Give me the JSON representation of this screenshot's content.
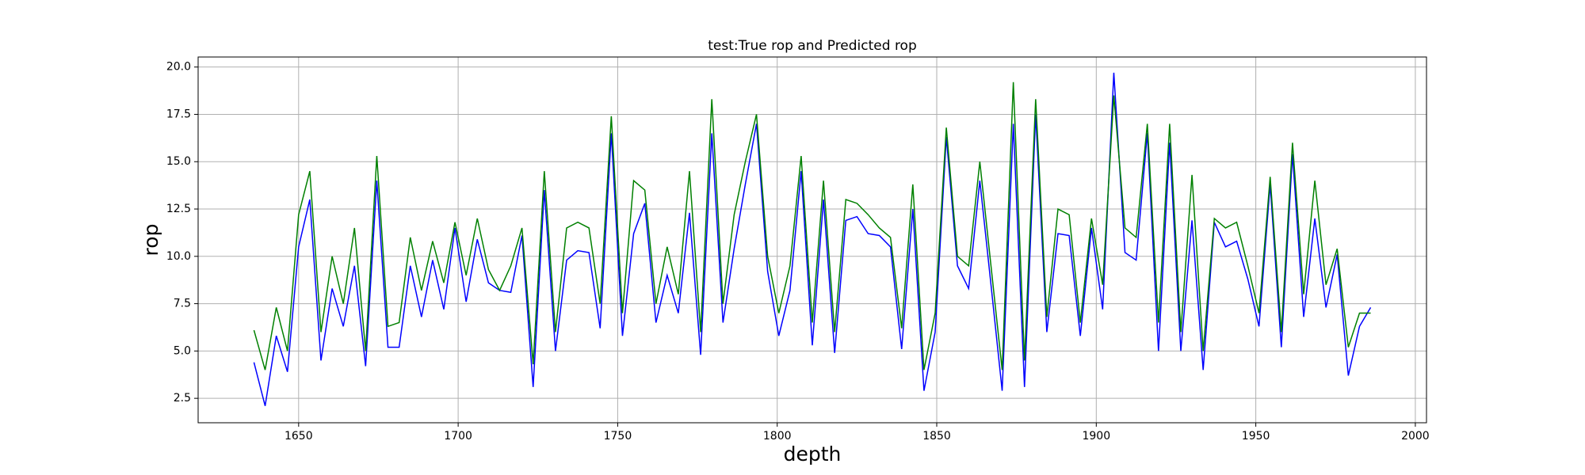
{
  "chart_data": {
    "type": "line",
    "title": "test:True rop and Predicted rop",
    "xlabel": "depth",
    "ylabel": "rop",
    "x": [
      1636,
      1639.5,
      1643,
      1646.5,
      1650,
      1653.5,
      1657,
      1660.5,
      1664,
      1667.5,
      1671,
      1674.5,
      1678,
      1681.5,
      1685,
      1688.5,
      1692,
      1695.5,
      1699,
      1702.5,
      1706,
      1709.5,
      1713,
      1716.5,
      1720,
      1723.5,
      1727,
      1730.5,
      1734,
      1737.5,
      1741,
      1744.5,
      1748,
      1751.5,
      1755,
      1758.5,
      1762,
      1765.5,
      1769,
      1772.5,
      1776,
      1779.5,
      1783,
      1786.5,
      1790,
      1793.5,
      1797,
      1800.5,
      1804,
      1807.5,
      1811,
      1814.5,
      1818,
      1821.5,
      1825,
      1828.5,
      1832,
      1835.5,
      1839,
      1842.5,
      1846,
      1849.5,
      1853,
      1856.5,
      1860,
      1863.5,
      1867,
      1870.5,
      1874,
      1877.5,
      1881,
      1884.5,
      1888,
      1891.5,
      1895,
      1898.5,
      1902,
      1905.5,
      1909,
      1912.5,
      1916,
      1919.5,
      1923,
      1926.5,
      1930,
      1933.5,
      1937,
      1940.5,
      1944,
      1947.5,
      1951,
      1954.5,
      1958,
      1961.5,
      1965,
      1968.5,
      1972,
      1975.5,
      1979,
      1982.5,
      1986
    ],
    "series": [
      {
        "color": "#0000ff",
        "values": [
          4.4,
          2.1,
          5.8,
          3.9,
          10.5,
          13.0,
          4.5,
          8.3,
          6.3,
          9.5,
          4.2,
          14.0,
          5.2,
          5.2,
          9.5,
          6.8,
          9.8,
          7.2,
          11.5,
          7.6,
          10.9,
          8.6,
          8.2,
          8.1,
          11.1,
          3.1,
          13.5,
          5.0,
          9.8,
          10.3,
          10.2,
          6.2,
          16.5,
          5.8,
          11.2,
          12.8,
          6.5,
          9.0,
          7.0,
          12.3,
          4.8,
          16.5,
          6.5,
          10.4,
          13.8,
          17.0,
          9.2,
          5.8,
          8.2,
          14.5,
          5.3,
          13.0,
          4.9,
          11.9,
          12.1,
          11.2,
          11.1,
          10.5,
          5.1,
          12.5,
          2.9,
          6.0,
          16.3,
          9.5,
          8.3,
          14.0,
          8.5,
          2.9,
          17.0,
          3.1,
          17.5,
          6.0,
          11.2,
          11.1,
          5.8,
          11.5,
          7.2,
          19.7,
          10.2,
          9.8,
          16.5,
          5.0,
          16.0,
          5.0,
          11.9,
          4.0,
          11.8,
          10.5,
          10.8,
          8.8,
          6.3,
          13.8,
          5.2,
          15.4,
          6.8,
          12.0,
          7.3,
          10.1,
          3.7,
          6.3,
          7.3
        ]
      },
      {
        "color": "#008000",
        "values": [
          6.1,
          4.0,
          7.3,
          5.0,
          12.2,
          14.5,
          6.0,
          10.0,
          7.5,
          11.5,
          5.0,
          15.3,
          6.3,
          6.5,
          11.0,
          8.2,
          10.8,
          8.6,
          11.8,
          9.0,
          12.0,
          9.3,
          8.2,
          9.5,
          11.5,
          4.3,
          14.5,
          6.0,
          11.5,
          11.8,
          11.5,
          7.5,
          17.4,
          7.0,
          14.0,
          13.5,
          7.5,
          10.5,
          8.0,
          14.5,
          6.0,
          18.3,
          7.5,
          12.2,
          15.0,
          17.5,
          10.0,
          7.0,
          9.5,
          15.3,
          6.5,
          14.0,
          6.0,
          13.0,
          12.8,
          12.2,
          11.5,
          11.0,
          6.2,
          13.8,
          4.0,
          7.0,
          16.8,
          10.0,
          9.5,
          15.0,
          9.5,
          4.0,
          19.2,
          4.5,
          18.3,
          6.8,
          12.5,
          12.2,
          6.5,
          12.0,
          8.5,
          18.5,
          11.5,
          11.0,
          17.0,
          6.5,
          17.0,
          6.0,
          14.3,
          5.0,
          12.0,
          11.5,
          11.8,
          9.5,
          7.0,
          14.2,
          6.0,
          16.0,
          8.0,
          14.0,
          8.5,
          10.4,
          5.2,
          7.0,
          7.0
        ]
      }
    ],
    "xlim": [
      1618.5,
      2003.5
    ],
    "xticks": [
      1650,
      1700,
      1750,
      1800,
      1850,
      1900,
      1950,
      2000
    ],
    "ylim": [
      1.21,
      20.53
    ],
    "yticks": [
      2.5,
      {
        "value": 5,
        "label": "5.0"
      },
      7.5,
      {
        "value": 10,
        "label": "10.0"
      },
      12.5,
      {
        "value": 15,
        "label": "15.0"
      },
      17.5,
      {
        "value": 20,
        "label": "20.0"
      }
    ],
    "grid": true
  }
}
